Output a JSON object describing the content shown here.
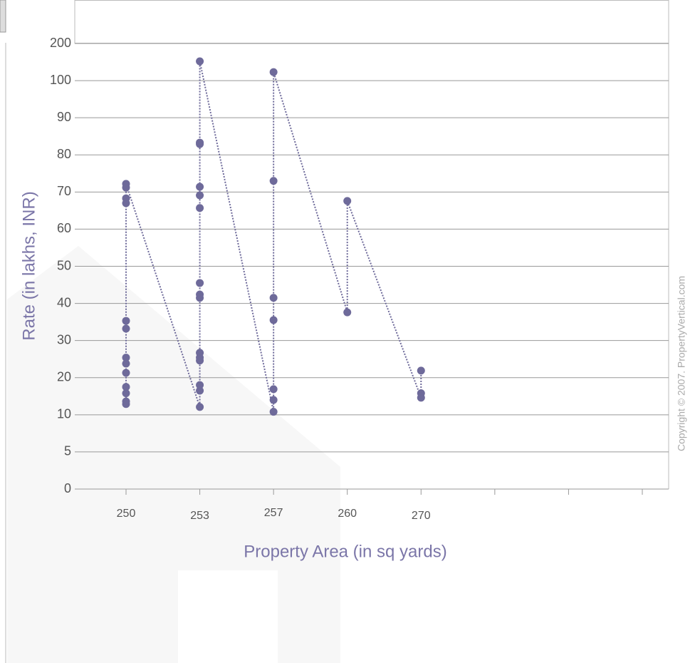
{
  "chart_data": {
    "type": "line",
    "x_label": "Property Area (in sq yards)",
    "y_label": "Rate (in lakhs, INR)",
    "copyright": "Copyright © 2007. PropertyVertical.com",
    "categories": [
      "250",
      "253",
      "257",
      "260",
      "270",
      null,
      null,
      null
    ],
    "ylim": [
      0,
      200
    ],
    "yticks": [
      0,
      5,
      10,
      20,
      30,
      40,
      50,
      60,
      70,
      80,
      90,
      100,
      200
    ],
    "grid": true,
    "series": [
      {
        "color": "#6e6a9a",
        "x": [
          250,
          250,
          250,
          250,
          250,
          250,
          250,
          250,
          250,
          250,
          250,
          250,
          250,
          253,
          253,
          253,
          253,
          253,
          253,
          253,
          253,
          253,
          253,
          253,
          253,
          253,
          253,
          253,
          257,
          257,
          257,
          257,
          257,
          257,
          257,
          260,
          260,
          270,
          270,
          270
        ],
        "values": [
          12.9,
          13.6,
          15.8,
          17.5,
          21.3,
          23.8,
          25.4,
          33.2,
          35.3,
          67,
          68.3,
          71.2,
          72.2,
          12.1,
          16.5,
          18,
          24.6,
          25.4,
          26.7,
          41.5,
          42.4,
          45.5,
          65.7,
          69.1,
          71.4,
          82.9,
          83.3,
          152,
          10.8,
          14,
          16.9,
          35.5,
          41.5,
          73,
          123,
          37.6,
          67.6,
          14.6,
          15.8,
          21.9
        ]
      }
    ]
  }
}
